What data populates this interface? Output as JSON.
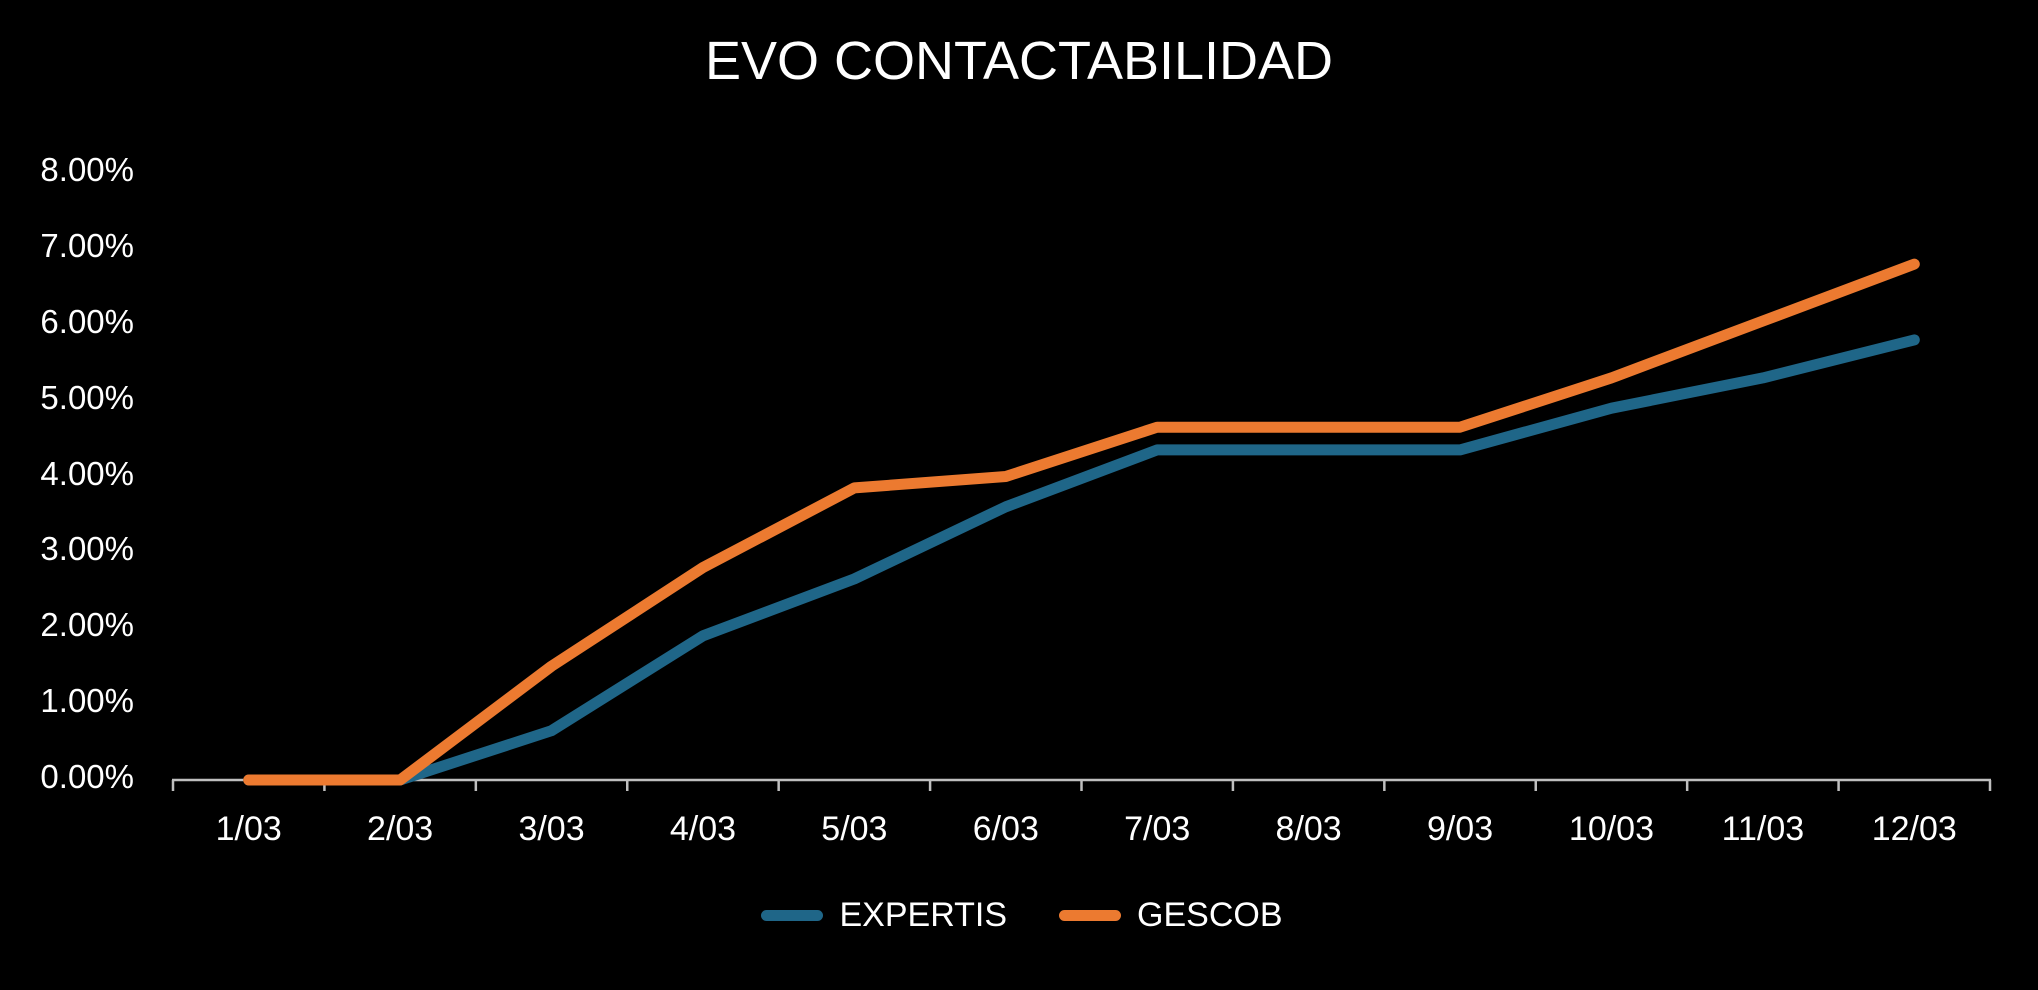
{
  "title": "EVO CONTACTABILIDAD",
  "colors": {
    "background": "#000000",
    "text": "#ffffff",
    "axis": "#bfbfbf",
    "expertis_teal": "#1f6688",
    "gescob_orange": "#ec7a30"
  },
  "chart_data": {
    "type": "line",
    "title": "EVO CONTACTABILIDAD",
    "categories": [
      "1/03",
      "2/03",
      "3/03",
      "4/03",
      "5/03",
      "6/03",
      "7/03",
      "8/03",
      "9/03",
      "10/03",
      "11/03",
      "12/03"
    ],
    "series": [
      {
        "name": "EXPERTIS",
        "color": "#1f6688",
        "values": [
          0.0,
          0.0,
          0.65,
          1.9,
          2.65,
          3.6,
          4.35,
          4.35,
          4.35,
          4.9,
          5.3,
          5.8
        ]
      },
      {
        "name": "GESCOB",
        "color": "#ec7a30",
        "values": [
          0.0,
          0.0,
          1.5,
          2.8,
          3.85,
          4.0,
          4.65,
          4.65,
          4.65,
          5.3,
          6.05,
          6.8
        ]
      }
    ],
    "y_tick_labels": [
      "0.00%",
      "1.00%",
      "2.00%",
      "3.00%",
      "4.00%",
      "5.00%",
      "6.00%",
      "7.00%",
      "8.00%"
    ],
    "ylim": [
      0,
      8
    ],
    "y_tick_step": 1,
    "xlabel": "",
    "ylabel": "",
    "values_unit": "percent",
    "grid": false,
    "legend_position": "bottom",
    "legend_entries": [
      "EXPERTIS",
      "GESCOB"
    ]
  }
}
